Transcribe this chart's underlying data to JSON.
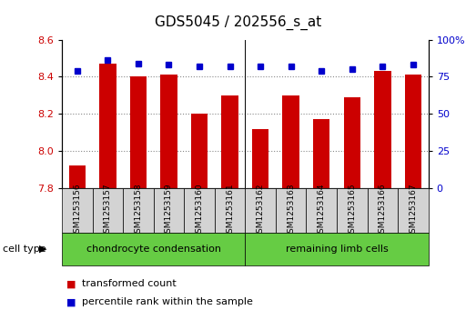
{
  "title": "GDS5045 / 202556_s_at",
  "samples": [
    "GSM1253156",
    "GSM1253157",
    "GSM1253158",
    "GSM1253159",
    "GSM1253160",
    "GSM1253161",
    "GSM1253162",
    "GSM1253163",
    "GSM1253164",
    "GSM1253165",
    "GSM1253166",
    "GSM1253167"
  ],
  "transformed_counts": [
    7.92,
    8.47,
    8.4,
    8.41,
    8.2,
    8.3,
    8.12,
    8.3,
    8.17,
    8.29,
    8.43,
    8.41
  ],
  "percentile_ranks": [
    79,
    86,
    84,
    83,
    82,
    82,
    82,
    82,
    79,
    80,
    82,
    83
  ],
  "ylim_left": [
    7.8,
    8.6
  ],
  "ylim_right": [
    0,
    100
  ],
  "yticks_left": [
    7.8,
    8.0,
    8.2,
    8.4,
    8.6
  ],
  "yticks_right": [
    0,
    25,
    50,
    75,
    100
  ],
  "bar_color": "#cc0000",
  "dot_color": "#0000cc",
  "group1_label": "chondrocyte condensation",
  "group2_label": "remaining limb cells",
  "group1_count": 6,
  "group2_count": 6,
  "cell_type_label": "cell type",
  "legend1": "transformed count",
  "legend2": "percentile rank within the sample",
  "bg_color": "#d3d3d3",
  "group_color": "#66cc44",
  "grid_color": "#aaaaaa",
  "title_fontsize": 11,
  "tick_fontsize": 8,
  "label_fontsize": 8
}
